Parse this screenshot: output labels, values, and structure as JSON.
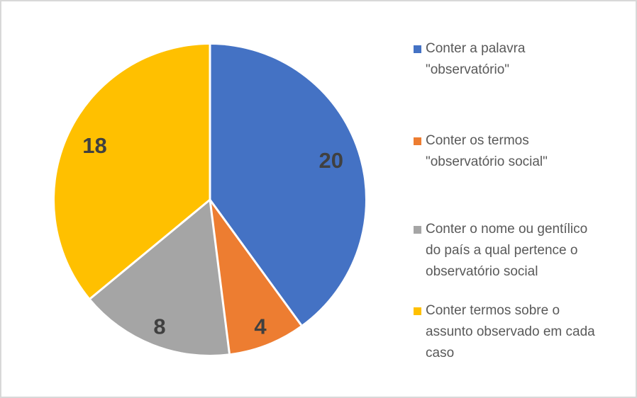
{
  "chart_data": {
    "type": "pie",
    "legend_position": "right",
    "start_angle_deg": 0,
    "direction": "clockwise",
    "slices": [
      {
        "label": "Conter a palavra \"observatório\"",
        "legend_text": "Conter a palavra\n\"observatório\"",
        "value": 20,
        "color": "#4472C4"
      },
      {
        "label": "Conter os termos \"observatório social\"",
        "legend_text": "Conter os termos\n\"observatório social\"",
        "value": 4,
        "color": "#ED7D31"
      },
      {
        "label": "Conter o nome ou gentílico do país a qual pertence o observatório social",
        "legend_text": "Conter o nome ou gentílico\ndo país a qual pertence o\nobservatório social",
        "value": 8,
        "color": "#A5A5A5"
      },
      {
        "label": "Conter termos sobre o assunto observado em cada caso",
        "legend_text": "Conter termos sobre o\nassunto observado em cada\ncaso",
        "value": 18,
        "color": "#FFC000"
      }
    ],
    "data_label_color": "#404040",
    "legend_text_color": "#595959",
    "slice_border_color": "#FFFFFF",
    "background_color": "#FFFFFF",
    "frame_border_color": "#D8D8D8"
  }
}
